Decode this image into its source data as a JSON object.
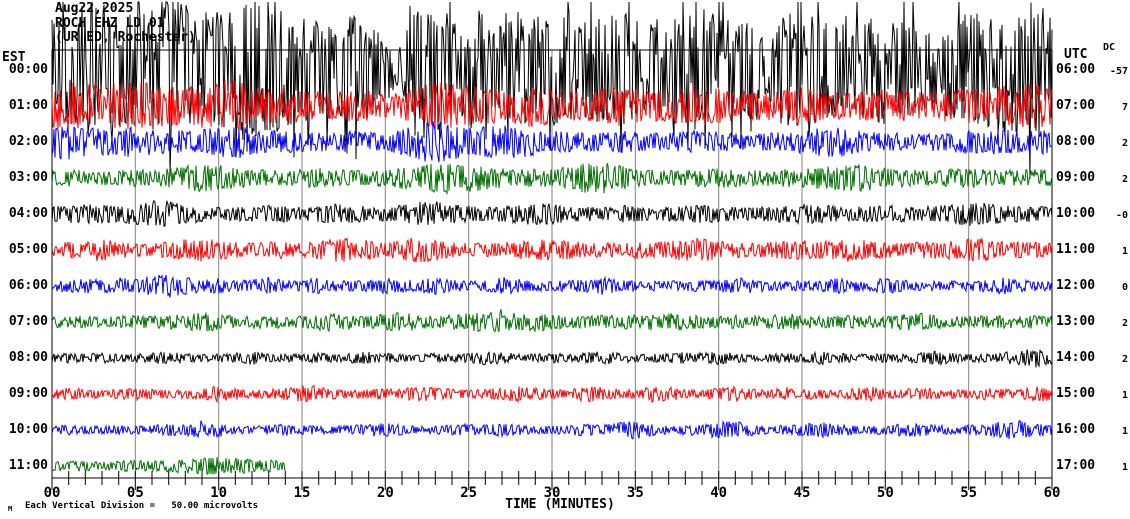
{
  "header": {
    "date": "Aug22,2025",
    "station": "ROCH EHZ LD 01",
    "site": "(UR ED, Rochester)"
  },
  "left_axis": {
    "label": "EST",
    "hours": [
      "00:00",
      "01:00",
      "02:00",
      "03:00",
      "04:00",
      "05:00",
      "06:00",
      "07:00",
      "08:00",
      "09:00",
      "10:00",
      "11:00"
    ]
  },
  "right_axis": {
    "label": "UTC",
    "hours": [
      "06:00",
      "07:00",
      "08:00",
      "09:00",
      "10:00",
      "11:00",
      "12:00",
      "13:00",
      "14:00",
      "15:00",
      "16:00",
      "17:00"
    ]
  },
  "dc_column": {
    "label": "DC",
    "values": [
      "-57",
      "7",
      "2",
      "2",
      "-0",
      "1",
      "0",
      "2",
      "2",
      "1",
      "1",
      "1"
    ]
  },
  "x_axis": {
    "title": "TIME (MINUTES)",
    "tick_labels": [
      "00",
      "05",
      "10",
      "15",
      "20",
      "25",
      "30",
      "35",
      "40",
      "45",
      "50",
      "55",
      "60"
    ],
    "minutes_min": 0,
    "minutes_max": 60,
    "minor_tick_every": 1,
    "major_tick_every": 5
  },
  "footer": {
    "marker": "M",
    "scale_text": "Each Vertical Division =",
    "scale_value": "50.00 microvolts"
  },
  "colors": {
    "trace_cycle": [
      "#000000",
      "#ff0000",
      "#0000ff",
      "#007000"
    ],
    "grid": "#808080",
    "frame": "#000000",
    "background": "#ffffff"
  },
  "chart_data": {
    "type": "line",
    "subtype": "helicorder-seismogram",
    "title": "ROCH EHZ LD 01 helicorder, Aug22,2025",
    "xlabel": "TIME (MINUTES)",
    "x_range": [
      0,
      60
    ],
    "grid": "vertical gray lines every 5 minutes",
    "row_duration_minutes": 60,
    "amplitude_unit": "pixels (half-amplitude envelope per minute); 1 vertical division = 50.00 microvolts",
    "rows": [
      {
        "est": "00:00",
        "utc": "06:00",
        "dc": "-57",
        "color": "#000000",
        "end_minute": 60,
        "envelope": [
          55,
          60,
          65,
          70,
          60,
          58,
          66,
          72,
          64,
          58,
          58,
          62,
          70,
          66,
          60,
          55,
          48,
          42,
          55,
          50,
          30,
          26,
          60,
          70,
          68,
          62,
          58,
          55,
          60,
          64,
          58,
          52,
          48,
          55,
          60,
          52,
          50,
          54,
          58,
          62,
          54,
          50,
          46,
          50,
          56,
          60,
          52,
          48,
          44,
          52,
          56,
          48,
          44,
          48,
          52,
          56,
          60,
          64,
          66,
          70,
          60
        ]
      },
      {
        "est": "01:00",
        "utc": "07:00",
        "dc": "7",
        "color": "#ff0000",
        "end_minute": 60,
        "envelope": [
          22,
          25,
          24,
          20,
          23,
          26,
          22,
          20,
          18,
          22,
          24,
          26,
          22,
          20,
          18,
          16,
          15,
          14,
          16,
          15,
          12,
          14,
          20,
          24,
          22,
          20,
          18,
          17,
          20,
          22,
          18,
          16,
          15,
          17,
          20,
          17,
          15,
          16,
          18,
          20,
          17,
          15,
          14,
          15,
          17,
          19,
          16,
          14,
          13,
          15,
          17,
          15,
          14,
          15,
          16,
          18,
          19,
          20,
          21,
          22,
          20
        ]
      },
      {
        "est": "02:00",
        "utc": "08:00",
        "dc": "2",
        "color": "#0000ff",
        "end_minute": 60,
        "envelope": [
          16,
          18,
          15,
          13,
          14,
          16,
          13,
          12,
          11,
          13,
          15,
          17,
          14,
          12,
          11,
          10,
          10,
          9,
          11,
          10,
          9,
          14,
          20,
          22,
          18,
          14,
          16,
          18,
          16,
          13,
          11,
          10,
          9,
          10,
          12,
          10,
          9,
          10,
          11,
          12,
          10,
          9,
          8,
          9,
          10,
          12,
          14,
          16,
          13,
          10,
          9,
          9,
          8,
          9,
          10,
          11,
          12,
          13,
          12,
          13,
          11
        ]
      },
      {
        "est": "03:00",
        "utc": "09:00",
        "dc": "2",
        "color": "#007000",
        "end_minute": 60,
        "envelope": [
          8,
          9,
          8,
          7,
          8,
          9,
          8,
          10,
          12,
          14,
          13,
          11,
          9,
          8,
          8,
          9,
          10,
          9,
          8,
          8,
          9,
          11,
          13,
          15,
          16,
          14,
          12,
          10,
          9,
          9,
          10,
          12,
          15,
          16,
          13,
          10,
          9,
          8,
          8,
          9,
          10,
          9,
          8,
          8,
          9,
          10,
          11,
          12,
          14,
          13,
          10,
          9,
          8,
          8,
          9,
          10,
          9,
          8,
          8,
          9,
          8
        ]
      },
      {
        "est": "04:00",
        "utc": "10:00",
        "dc": "-0",
        "color": "#000000",
        "end_minute": 60,
        "envelope": [
          8,
          9,
          10,
          9,
          8,
          12,
          14,
          13,
          10,
          8,
          7,
          7,
          8,
          9,
          8,
          7,
          8,
          10,
          9,
          8,
          7,
          9,
          12,
          13,
          10,
          8,
          7,
          8,
          10,
          12,
          10,
          8,
          7,
          8,
          9,
          8,
          7,
          7,
          8,
          9,
          8,
          7,
          7,
          8,
          9,
          10,
          9,
          8,
          7,
          8,
          9,
          8,
          7,
          8,
          10,
          12,
          11,
          9,
          8,
          8,
          7
        ]
      },
      {
        "est": "05:00",
        "utc": "11:00",
        "dc": "1",
        "color": "#ff0000",
        "end_minute": 60,
        "envelope": [
          7,
          8,
          10,
          12,
          9,
          7,
          7,
          8,
          11,
          12,
          10,
          8,
          7,
          8,
          9,
          8,
          9,
          12,
          13,
          10,
          8,
          11,
          13,
          11,
          8,
          7,
          7,
          8,
          9,
          10,
          12,
          10,
          8,
          7,
          8,
          9,
          8,
          9,
          11,
          12,
          9,
          8,
          7,
          8,
          9,
          10,
          9,
          11,
          12,
          9,
          8,
          7,
          8,
          9,
          10,
          11,
          12,
          9,
          8,
          8,
          7
        ]
      },
      {
        "est": "06:00",
        "utc": "12:00",
        "dc": "0",
        "color": "#0000ff",
        "end_minute": 60,
        "envelope": [
          5,
          6,
          9,
          6,
          9,
          7,
          11,
          12,
          9,
          6,
          8,
          6,
          7,
          9,
          6,
          6,
          8,
          6,
          5,
          6,
          8,
          6,
          7,
          9,
          6,
          5,
          6,
          9,
          7,
          5,
          5,
          6,
          7,
          9,
          6,
          5,
          5,
          6,
          5,
          6,
          5,
          9,
          7,
          5,
          5,
          6,
          5,
          8,
          6,
          5,
          9,
          6,
          5,
          5,
          6,
          5,
          6,
          9,
          6,
          5,
          5
        ]
      },
      {
        "est": "07:00",
        "utc": "13:00",
        "dc": "2",
        "color": "#007000",
        "end_minute": 60,
        "envelope": [
          6,
          7,
          6,
          5,
          6,
          7,
          6,
          7,
          8,
          10,
          8,
          6,
          6,
          7,
          6,
          6,
          8,
          10,
          7,
          6,
          8,
          10,
          8,
          6,
          7,
          9,
          12,
          13,
          9,
          10,
          8,
          6,
          6,
          7,
          8,
          7,
          8,
          10,
          8,
          6,
          6,
          7,
          6,
          7,
          9,
          7,
          6,
          6,
          7,
          6,
          6,
          8,
          9,
          7,
          6,
          6,
          7,
          6,
          6,
          7,
          6
        ]
      },
      {
        "est": "08:00",
        "utc": "14:00",
        "dc": "2",
        "color": "#000000",
        "end_minute": 60,
        "envelope": [
          4,
          5,
          4,
          6,
          4,
          4,
          5,
          7,
          5,
          4,
          4,
          5,
          7,
          5,
          4,
          4,
          5,
          4,
          5,
          7,
          5,
          4,
          4,
          5,
          4,
          5,
          7,
          6,
          4,
          4,
          5,
          4,
          5,
          7,
          5,
          4,
          4,
          5,
          6,
          5,
          7,
          5,
          4,
          4,
          5,
          4,
          7,
          5,
          4,
          4,
          5,
          4,
          5,
          7,
          5,
          4,
          4,
          5,
          9,
          10,
          6
        ]
      },
      {
        "est": "09:00",
        "utc": "15:00",
        "dc": "1",
        "color": "#ff0000",
        "end_minute": 60,
        "envelope": [
          5,
          6,
          5,
          4,
          5,
          7,
          5,
          4,
          5,
          6,
          8,
          6,
          4,
          5,
          6,
          9,
          8,
          5,
          4,
          5,
          6,
          5,
          8,
          6,
          5,
          4,
          5,
          6,
          8,
          6,
          5,
          4,
          8,
          7,
          5,
          4,
          8,
          7,
          5,
          4,
          6,
          8,
          5,
          4,
          7,
          6,
          5,
          4,
          6,
          8,
          5,
          4,
          7,
          6,
          5,
          4,
          6,
          5,
          4,
          9,
          6
        ]
      },
      {
        "est": "10:00",
        "utc": "16:00",
        "dc": "1",
        "color": "#0000ff",
        "end_minute": 60,
        "envelope": [
          4,
          5,
          4,
          4,
          5,
          4,
          5,
          6,
          5,
          10,
          7,
          4,
          4,
          5,
          6,
          5,
          4,
          4,
          5,
          6,
          7,
          5,
          4,
          4,
          5,
          6,
          5,
          7,
          5,
          4,
          4,
          5,
          6,
          5,
          8,
          9,
          6,
          4,
          5,
          6,
          8,
          9,
          6,
          4,
          5,
          6,
          8,
          7,
          5,
          4,
          5,
          6,
          7,
          5,
          4,
          5,
          6,
          9,
          10,
          7,
          5
        ]
      },
      {
        "est": "11:00",
        "utc": "17:00",
        "dc": "1",
        "color": "#007000",
        "end_minute": 14,
        "envelope": [
          5,
          6,
          5,
          4,
          5,
          6,
          5,
          6,
          7,
          8,
          9,
          8,
          7,
          6,
          5,
          0,
          0,
          0,
          0,
          0,
          0,
          0,
          0,
          0,
          0,
          0,
          0,
          0,
          0,
          0,
          0,
          0,
          0,
          0,
          0,
          0,
          0,
          0,
          0,
          0,
          0,
          0,
          0,
          0,
          0,
          0,
          0,
          0,
          0,
          0,
          0,
          0,
          0,
          0,
          0,
          0,
          0,
          0,
          0,
          0,
          0
        ]
      }
    ]
  }
}
